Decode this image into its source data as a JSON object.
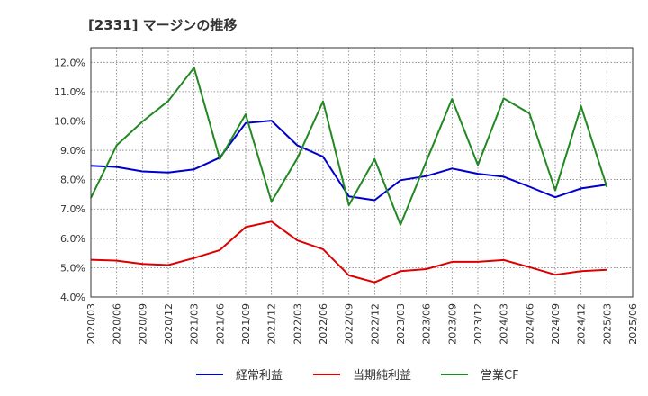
{
  "chart_data": {
    "type": "line",
    "title": "[2331]  マージンの推移",
    "xlabel": "",
    "ylabel": "",
    "x": [
      "2020/03",
      "2020/06",
      "2020/09",
      "2020/12",
      "2021/03",
      "2021/06",
      "2021/09",
      "2021/12",
      "2022/03",
      "2022/06",
      "2022/09",
      "2022/12",
      "2023/03",
      "2023/06",
      "2023/09",
      "2023/12",
      "2024/03",
      "2024/06",
      "2024/09",
      "2024/12",
      "2025/03",
      "2025/06"
    ],
    "ylim": [
      4.0,
      12.5
    ],
    "yticks": [
      4.0,
      5.0,
      6.0,
      7.0,
      8.0,
      9.0,
      10.0,
      11.0,
      12.0
    ],
    "ytick_labels": [
      "4.0%",
      "5.0%",
      "6.0%",
      "7.0%",
      "8.0%",
      "9.0%",
      "10.0%",
      "11.0%",
      "12.0%"
    ],
    "grid": true,
    "legend_position": "bottom",
    "series": [
      {
        "name": "経常利益",
        "color": "#0000cc",
        "values": [
          8.47,
          8.43,
          8.28,
          8.24,
          8.35,
          8.75,
          9.93,
          10.01,
          9.17,
          8.78,
          7.43,
          7.3,
          7.98,
          8.12,
          8.38,
          8.2,
          8.1,
          7.76,
          7.4,
          7.7,
          7.83,
          null
        ]
      },
      {
        "name": "当期純利益",
        "color": "#dd0000",
        "values": [
          5.27,
          5.24,
          5.13,
          5.09,
          5.33,
          5.6,
          6.38,
          6.57,
          5.93,
          5.63,
          4.74,
          4.5,
          4.88,
          4.95,
          5.2,
          5.2,
          5.26,
          5.02,
          4.76,
          4.88,
          4.93,
          null
        ]
      },
      {
        "name": "営業CF",
        "color": "#228822",
        "values": [
          7.38,
          9.17,
          9.98,
          10.68,
          11.82,
          8.7,
          10.23,
          7.25,
          8.72,
          10.67,
          7.13,
          8.7,
          6.46,
          8.62,
          10.75,
          8.5,
          10.77,
          10.26,
          7.63,
          10.5,
          7.75,
          null
        ]
      }
    ]
  }
}
